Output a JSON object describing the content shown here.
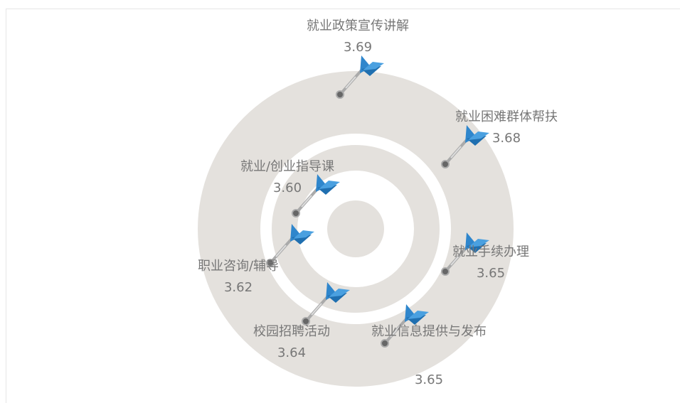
{
  "chart_data": {
    "type": "dartboard",
    "categories": [
      "就业政策宣传讲解",
      "就业困难群体帮扶",
      "就业/创业指导课",
      "职业咨询/辅导",
      "校园招聘活动",
      "就业信息提供与发布",
      "就业手续办理"
    ],
    "values": [
      3.69,
      3.68,
      3.6,
      3.62,
      3.64,
      3.65,
      3.65
    ],
    "value_labels": [
      "3.69",
      "3.68",
      "3.60",
      "3.62",
      "3.64",
      "3.65",
      "3.65"
    ],
    "color": "#2f86cc"
  }
}
